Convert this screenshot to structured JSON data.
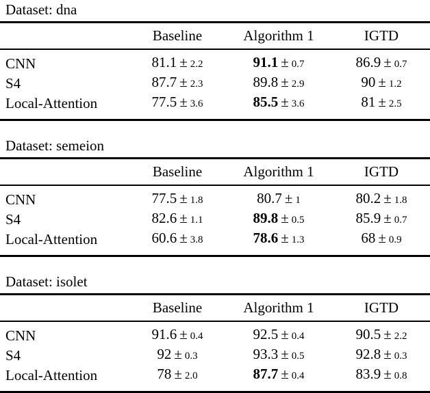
{
  "page": {
    "background": "#ffffff",
    "text_color": "#000000",
    "rule_color": "#000000"
  },
  "glyphs": {
    "plus_minus": "±"
  },
  "columns": [
    "",
    "Baseline",
    "Algorithm 1",
    "IGTD"
  ],
  "tables": [
    {
      "dataset_label": "Dataset: dna",
      "rows": [
        {
          "model": "CNN",
          "cells": [
            {
              "mean": "81.1",
              "std": "2.2",
              "bold": false
            },
            {
              "mean": "91.1",
              "std": "0.7",
              "bold": true
            },
            {
              "mean": "86.9",
              "std": "0.7",
              "bold": false
            }
          ]
        },
        {
          "model": "S4",
          "cells": [
            {
              "mean": "87.7",
              "std": "2.3",
              "bold": false
            },
            {
              "mean": "89.8",
              "std": "2.9",
              "bold": false
            },
            {
              "mean": "90",
              "std": "1.2",
              "bold": false
            }
          ]
        },
        {
          "model": "Local-Attention",
          "cells": [
            {
              "mean": "77.5",
              "std": "3.6",
              "bold": false
            },
            {
              "mean": "85.5",
              "std": "3.6",
              "bold": true
            },
            {
              "mean": "81",
              "std": "2.5",
              "bold": false
            }
          ]
        }
      ]
    },
    {
      "dataset_label": "Dataset: semeion",
      "rows": [
        {
          "model": "CNN",
          "cells": [
            {
              "mean": "77.5",
              "std": "1.8",
              "bold": false
            },
            {
              "mean": "80.7",
              "std": "1",
              "bold": false
            },
            {
              "mean": "80.2",
              "std": "1.8",
              "bold": false
            }
          ]
        },
        {
          "model": "S4",
          "cells": [
            {
              "mean": "82.6",
              "std": "1.1",
              "bold": false
            },
            {
              "mean": "89.8",
              "std": "0.5",
              "bold": true
            },
            {
              "mean": "85.9",
              "std": "0.7",
              "bold": false
            }
          ]
        },
        {
          "model": "Local-Attention",
          "cells": [
            {
              "mean": "60.6",
              "std": "3.8",
              "bold": false
            },
            {
              "mean": "78.6",
              "std": "1.3",
              "bold": true
            },
            {
              "mean": "68",
              "std": "0.9",
              "bold": false
            }
          ]
        }
      ]
    },
    {
      "dataset_label": "Dataset: isolet",
      "rows": [
        {
          "model": "CNN",
          "cells": [
            {
              "mean": "91.6",
              "std": "0.4",
              "bold": false
            },
            {
              "mean": "92.5",
              "std": "0.4",
              "bold": false
            },
            {
              "mean": "90.5",
              "std": "2.2",
              "bold": false
            }
          ]
        },
        {
          "model": "S4",
          "cells": [
            {
              "mean": "92",
              "std": "0.3",
              "bold": false
            },
            {
              "mean": "93.3",
              "std": "0.5",
              "bold": false
            },
            {
              "mean": "92.8",
              "std": "0.3",
              "bold": false
            }
          ]
        },
        {
          "model": "Local-Attention",
          "cells": [
            {
              "mean": "78",
              "std": "2.0",
              "bold": false
            },
            {
              "mean": "87.7",
              "std": "0.4",
              "bold": true
            },
            {
              "mean": "83.9",
              "std": "0.8",
              "bold": false
            }
          ]
        }
      ]
    }
  ]
}
